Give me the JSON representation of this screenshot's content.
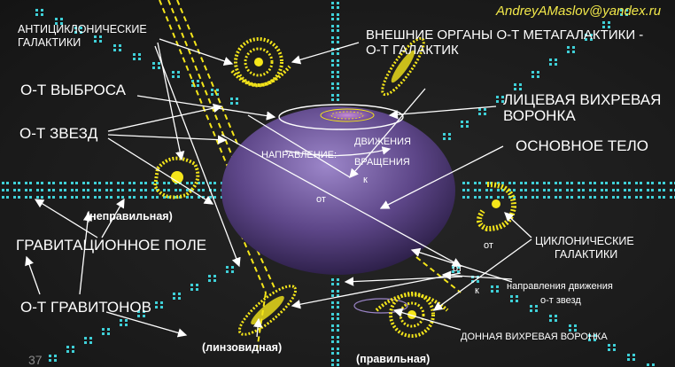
{
  "author_email": "AndreyAMaslov@yandex.ru",
  "slide_number": "37",
  "labels": {
    "anticyclonic_1": "АНТИЦИКЛОНИЧЕСКИЕ",
    "anticyclonic_2": "ГАЛАКТИКИ",
    "external_1": "ВНЕШНИЕ ОРГАНЫ О-Т МЕТАГАЛАКТИКИ -",
    "external_2": "О-Т ГАЛАКТИК",
    "ejection": "О-Т ВЫБРОСА",
    "facial_1": "ЛИЦЕВАЯ ВИХРЕВАЯ",
    "facial_2": "ВОРОНКА",
    "stars": "О-Т ЗВЕЗД",
    "motion_1": "ДВИЖЕНИЯ",
    "direction": "НАПРАВЛЕНИЕ:",
    "rotation": "ВРАЩЕНИЯ",
    "main_body": "ОСНОВНОЕ ТЕЛО",
    "to_1": "к",
    "from_1": "от",
    "irregular": "(неправильная)",
    "gravitational_field": "ГРАВИТАЦИОННОЕ ПОЛЕ",
    "cyclonic_1": "ЦИКЛОНИЧЕСКИЕ",
    "cyclonic_2": "ГАЛАКТИКИ",
    "from_2": "от",
    "from_3": "от",
    "to_2": "к",
    "star_motion_1": "направления движения",
    "star_motion_2": "о-т звезд",
    "gravitons": "О-Т ГРАВИТОНОВ",
    "bottom_funnel": "ДОННАЯ ВИХРЕВАЯ ВОРОНКА",
    "lenticular": "(линзовидная)",
    "regular": "(правильная)"
  },
  "colors": {
    "background": "#1b1b1b",
    "dots": "#3fd0d8",
    "galaxy": "#f5e61a",
    "body_light": "#9c86c9",
    "body_dark": "#2e1f4a",
    "arrows": "#ffffff",
    "email": "#f2e84a"
  },
  "icons": [
    "spiral-galaxy",
    "elliptical-galaxy",
    "irregular-galaxy",
    "vortex-funnel"
  ]
}
